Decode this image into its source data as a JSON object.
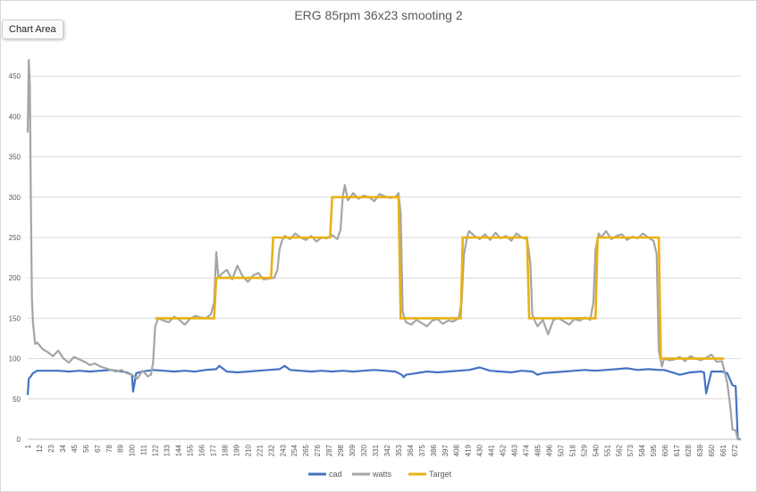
{
  "tooltip": "Chart Area",
  "chart_data": {
    "type": "line",
    "title": "ERG 85rpm 36x23  smooting 2",
    "xlabel": "",
    "ylabel": "",
    "ylim": [
      0,
      500
    ],
    "yticks": [
      0,
      50,
      100,
      150,
      200,
      250,
      300,
      350,
      400,
      450
    ],
    "xlim": [
      1,
      678
    ],
    "xticks": [
      1,
      12,
      23,
      34,
      45,
      56,
      67,
      78,
      89,
      100,
      111,
      122,
      133,
      144,
      155,
      166,
      177,
      188,
      199,
      210,
      221,
      232,
      243,
      254,
      265,
      276,
      287,
      298,
      309,
      320,
      331,
      342,
      353,
      364,
      375,
      386,
      397,
      408,
      419,
      430,
      441,
      452,
      463,
      474,
      485,
      496,
      507,
      518,
      529,
      540,
      551,
      562,
      573,
      584,
      595,
      606,
      617,
      628,
      639,
      650,
      661,
      672
    ],
    "grid": "horizontal",
    "legend": "bottom",
    "series": [
      {
        "name": "cad",
        "color": "#4472C4",
        "x": [
          1,
          2,
          4,
          6,
          10,
          20,
          30,
          40,
          50,
          60,
          70,
          80,
          90,
          95,
          100,
          101,
          104,
          110,
          115,
          120,
          130,
          140,
          150,
          160,
          170,
          180,
          183,
          190,
          200,
          210,
          220,
          230,
          240,
          245,
          250,
          260,
          270,
          280,
          290,
          300,
          310,
          320,
          330,
          340,
          350,
          356,
          358,
          360,
          370,
          375,
          380,
          390,
          400,
          410,
          420,
          430,
          440,
          450,
          460,
          470,
          480,
          485,
          490,
          500,
          510,
          520,
          530,
          540,
          550,
          560,
          570,
          580,
          590,
          600,
          605,
          610,
          620,
          630,
          640,
          643,
          645,
          650,
          660,
          665,
          670,
          673,
          675,
          678
        ],
        "y": [
          55,
          75,
          78,
          82,
          85,
          85,
          85,
          84,
          85,
          84,
          85,
          86,
          84,
          83,
          80,
          59,
          82,
          84,
          85,
          86,
          85,
          84,
          85,
          84,
          86,
          87,
          91,
          84,
          83,
          84,
          85,
          86,
          87,
          91,
          86,
          85,
          84,
          85,
          84,
          85,
          84,
          85,
          86,
          85,
          84,
          80,
          77,
          80,
          82,
          83,
          84,
          83,
          84,
          85,
          86,
          89,
          85,
          84,
          83,
          85,
          84,
          80,
          82,
          83,
          84,
          85,
          86,
          85,
          86,
          87,
          88,
          86,
          87,
          86,
          86,
          84,
          80,
          83,
          84,
          83,
          57,
          84,
          84,
          82,
          67,
          66,
          1,
          0
        ]
      },
      {
        "name": "watts",
        "color": "#A5A5A5",
        "x": [
          1,
          2,
          3,
          4,
          5,
          6,
          8,
          10,
          15,
          20,
          25,
          30,
          35,
          40,
          45,
          50,
          55,
          60,
          65,
          70,
          75,
          80,
          85,
          90,
          95,
          100,
          105,
          110,
          115,
          118,
          120,
          122,
          125,
          130,
          135,
          140,
          145,
          150,
          155,
          160,
          165,
          170,
          175,
          178,
          180,
          182,
          185,
          190,
          195,
          200,
          205,
          210,
          215,
          220,
          225,
          230,
          235,
          238,
          240,
          242,
          245,
          250,
          255,
          260,
          265,
          270,
          275,
          280,
          285,
          290,
          295,
          298,
          300,
          302,
          305,
          310,
          315,
          320,
          325,
          330,
          335,
          340,
          345,
          350,
          353,
          355,
          357,
          360,
          365,
          370,
          375,
          380,
          385,
          390,
          395,
          400,
          405,
          410,
          413,
          415,
          418,
          420,
          425,
          430,
          435,
          440,
          445,
          450,
          455,
          460,
          465,
          470,
          475,
          478,
          480,
          483,
          485,
          490,
          495,
          500,
          505,
          510,
          515,
          520,
          525,
          530,
          535,
          538,
          540,
          543,
          545,
          550,
          555,
          560,
          565,
          570,
          575,
          580,
          585,
          590,
          595,
          598,
          600,
          603,
          605,
          610,
          615,
          620,
          625,
          630,
          635,
          640,
          645,
          650,
          655,
          660,
          665,
          668,
          670,
          673,
          675,
          678
        ],
        "y": [
          380,
          470,
          440,
          300,
          175,
          145,
          118,
          120,
          112,
          108,
          103,
          110,
          100,
          95,
          102,
          99,
          96,
          92,
          94,
          90,
          88,
          86,
          84,
          86,
          82,
          80,
          75,
          85,
          78,
          80,
          95,
          140,
          150,
          147,
          145,
          152,
          148,
          142,
          149,
          153,
          151,
          150,
          155,
          170,
          232,
          200,
          205,
          210,
          198,
          215,
          202,
          195,
          203,
          206,
          198,
          199,
          200,
          210,
          235,
          245,
          252,
          248,
          255,
          250,
          247,
          252,
          245,
          250,
          249,
          253,
          248,
          260,
          300,
          315,
          296,
          305,
          298,
          302,
          300,
          295,
          304,
          301,
          299,
          300,
          305,
          280,
          158,
          145,
          142,
          148,
          144,
          140,
          147,
          149,
          143,
          147,
          146,
          150,
          170,
          228,
          250,
          258,
          252,
          248,
          254,
          247,
          256,
          249,
          252,
          246,
          255,
          250,
          248,
          220,
          155,
          145,
          140,
          148,
          130,
          148,
          150,
          146,
          142,
          149,
          147,
          151,
          148,
          170,
          235,
          255,
          250,
          258,
          248,
          252,
          254,
          247,
          251,
          249,
          255,
          250,
          246,
          230,
          110,
          90,
          100,
          98,
          99,
          102,
          97,
          103,
          100,
          98,
          101,
          105,
          96,
          97,
          70,
          40,
          12,
          11,
          0,
          0
        ]
      },
      {
        "name": "Target",
        "color": "#E9B116",
        "x": [
          122,
          178,
          180,
          232,
          234,
          288,
          290,
          353,
          355,
          412,
          414,
          475,
          477,
          540,
          542,
          600,
          602,
          662
        ],
        "y": [
          150,
          150,
          200,
          200,
          250,
          250,
          300,
          300,
          150,
          150,
          250,
          250,
          150,
          150,
          250,
          250,
          100,
          100
        ]
      }
    ]
  }
}
